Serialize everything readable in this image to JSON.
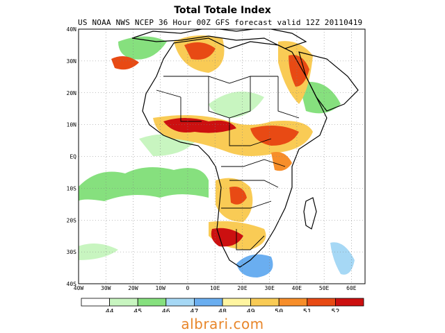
{
  "title": "Total Totale Index",
  "subtitle": "US NOAA NWS NCEP 36 Hour 00Z GFS forecast valid 12Z 20110419",
  "lat_labels": [
    "40N",
    "30N",
    "20N",
    "10N",
    "EQ",
    "10S",
    "20S",
    "30S",
    "40S"
  ],
  "lon_labels": [
    "40W",
    "30W",
    "20W",
    "10W",
    "0",
    "10E",
    "20E",
    "30E",
    "40E",
    "50E",
    "60E"
  ],
  "lat_values": [
    40,
    30,
    20,
    10,
    0,
    -10,
    -20,
    -30,
    -40
  ],
  "lon_values": [
    -40,
    -30,
    -20,
    -10,
    0,
    10,
    20,
    30,
    40,
    50,
    60
  ],
  "colorbar": {
    "labels": [
      "44",
      "45",
      "46",
      "47",
      "48",
      "49",
      "50",
      "51",
      "52"
    ],
    "colors": [
      "#ffffff",
      "#c8f5c0",
      "#86e07e",
      "#a6d8f5",
      "#6aaef0",
      "#fff5a0",
      "#f9cb55",
      "#f78e2a",
      "#e84a14",
      "#cc1010"
    ]
  },
  "watermark": "albrari.com"
}
